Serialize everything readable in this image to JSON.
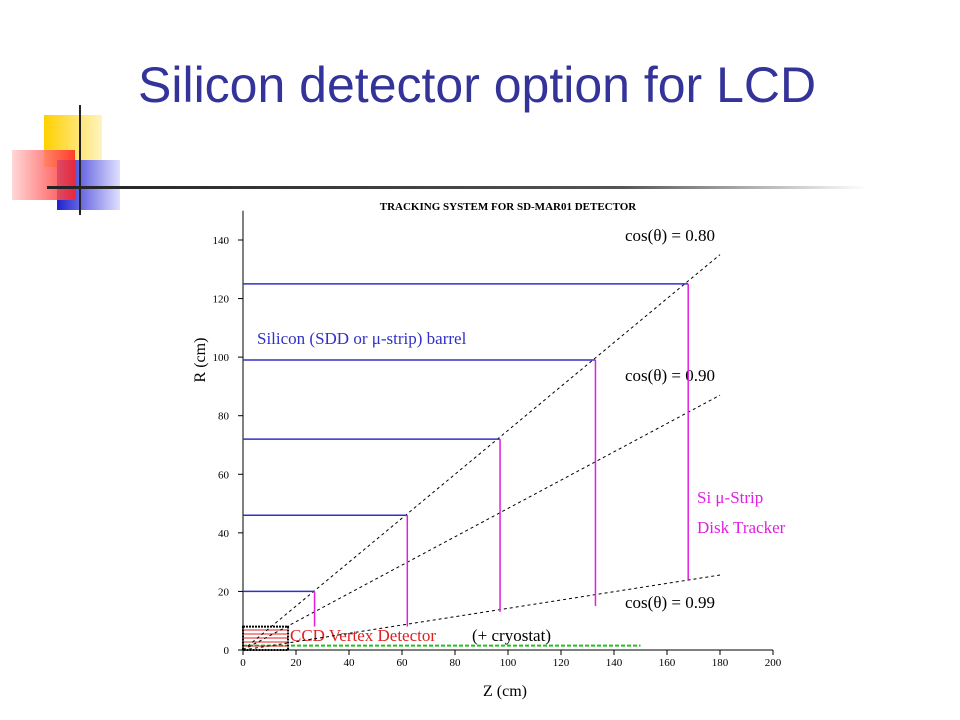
{
  "slide_title": "Silicon detector option for LCD",
  "chart_data": {
    "type": "detector-layout",
    "title": "TRACKING SYSTEM FOR SD-MAR01 DETECTOR",
    "xlabel": "Z (cm)",
    "ylabel": "R (cm)",
    "xlim": [
      0,
      200
    ],
    "ylim": [
      0,
      150
    ],
    "xticks": [
      0,
      20,
      40,
      60,
      80,
      100,
      120,
      140,
      160,
      180,
      200
    ],
    "yticks": [
      0,
      20,
      40,
      60,
      80,
      100,
      120,
      140
    ],
    "barrels": {
      "label": "Silicon (SDD or μ-strip) barrel",
      "color": "#3030c8",
      "r": [
        20,
        46,
        72,
        99,
        125
      ],
      "z_end": [
        27,
        62,
        97,
        133,
        168
      ]
    },
    "disks": {
      "label": [
        "Si μ-Strip",
        "Disk Tracker"
      ],
      "color": "#e020e0",
      "z": [
        27,
        62,
        97,
        133,
        168
      ],
      "r_min": [
        8,
        8,
        13,
        15,
        24
      ],
      "r_max": [
        20,
        46,
        72,
        99,
        125
      ]
    },
    "cos_lines": [
      {
        "label": "cos(θ) = 0.80",
        "z_end": 180,
        "r_end": 135
      },
      {
        "label": "cos(θ) = 0.90",
        "z_end": 180,
        "r_end": 87
      },
      {
        "label": "cos(θ) = 0.99",
        "z_end": 180,
        "r_end": 25.6
      }
    ],
    "ccd": {
      "label": "CCD Vertex Detector",
      "note": "(+ cryostat)",
      "color": "#e02020",
      "z_max": 17,
      "r_max": 8
    },
    "beampipe": {
      "color": "#20c020",
      "z_max": 150,
      "r": 1.5
    }
  }
}
